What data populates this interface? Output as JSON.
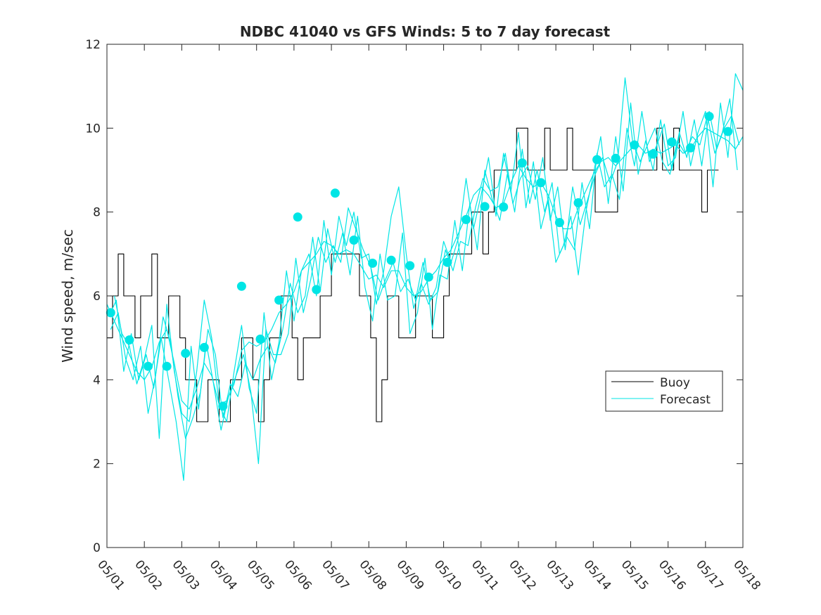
{
  "chart_data": {
    "type": "line",
    "title": "NDBC 41040 vs GFS Winds: 5 to 7 day forecast",
    "xlabel": "",
    "ylabel": "Wind speed, m/sec",
    "xlim": [
      1,
      18
    ],
    "ylim": [
      0,
      12
    ],
    "x_tick_values": [
      1,
      2,
      3,
      4,
      5,
      6,
      7,
      8,
      9,
      10,
      11,
      12,
      13,
      14,
      15,
      16,
      17,
      18
    ],
    "x_tick_labels": [
      "05/01",
      "05/02",
      "05/03",
      "05/04",
      "05/05",
      "05/06",
      "05/07",
      "05/08",
      "05/09",
      "05/10",
      "05/11",
      "05/12",
      "05/13",
      "05/14",
      "05/15",
      "05/16",
      "05/17",
      "05/18"
    ],
    "y_ticks": [
      0,
      2,
      4,
      6,
      8,
      10,
      12
    ],
    "grid": false,
    "legend": {
      "placement": "right-middle",
      "entries": [
        "Buoy",
        "Forecast"
      ]
    },
    "colors": {
      "Buoy": "#000000",
      "Forecast": "#00e5e5"
    },
    "series": [
      {
        "name": "Buoy",
        "x": [
          1.0,
          1.15,
          1.3,
          1.45,
          1.6,
          1.75,
          1.9,
          2.05,
          2.2,
          2.35,
          2.5,
          2.65,
          2.8,
          2.95,
          3.1,
          3.25,
          3.4,
          3.55,
          3.7,
          3.85,
          4.0,
          4.15,
          4.3,
          4.45,
          4.6,
          4.75,
          4.9,
          5.05,
          5.2,
          5.35,
          5.5,
          5.65,
          5.8,
          5.95,
          6.1,
          6.25,
          6.4,
          6.55,
          6.7,
          6.85,
          7.0,
          7.15,
          7.3,
          7.45,
          7.6,
          7.75,
          7.9,
          8.05,
          8.2,
          8.35,
          8.5,
          8.65,
          8.8,
          8.95,
          9.1,
          9.25,
          9.4,
          9.55,
          9.7,
          9.85,
          10.0,
          10.15,
          10.3,
          10.45,
          10.6,
          10.75,
          10.9,
          11.05,
          11.2,
          11.35,
          11.5,
          11.65,
          11.8,
          11.95,
          12.1,
          12.25,
          12.4,
          12.55,
          12.7,
          12.85,
          13.0,
          13.15,
          13.3,
          13.45,
          13.6,
          13.75,
          13.9,
          14.05,
          14.2,
          14.35,
          14.5,
          14.65,
          14.8,
          14.95,
          15.1,
          15.25,
          15.4,
          15.55,
          15.7,
          15.85,
          16.0,
          16.15,
          16.3,
          16.45,
          16.6,
          16.75,
          16.9,
          17.05,
          17.2,
          17.35
        ],
        "values": [
          5,
          6,
          7,
          6,
          6,
          5,
          6,
          6,
          7,
          5,
          5,
          6,
          6,
          5,
          4,
          4,
          3,
          3,
          4,
          4,
          3,
          3,
          4,
          4,
          5,
          5,
          4,
          3,
          4,
          5,
          5,
          6,
          6,
          5,
          4,
          5,
          5,
          5,
          6,
          6,
          7,
          7,
          7,
          7,
          7,
          6,
          6,
          5,
          3,
          4,
          6,
          6,
          5,
          5,
          5,
          6,
          6,
          6,
          5,
          5,
          6,
          7,
          7,
          7,
          7,
          8,
          8,
          7,
          8,
          9,
          9,
          9,
          9,
          10,
          10,
          9,
          9,
          9,
          10,
          9,
          9,
          9,
          10,
          9,
          9,
          9,
          9,
          8,
          8,
          8,
          8,
          9,
          9,
          9,
          9,
          9,
          9,
          9,
          10,
          9,
          9,
          10,
          9,
          9,
          9,
          9,
          8,
          9,
          9,
          9
        ]
      },
      {
        "name": "Forecast",
        "x": [
          1.0,
          1.2,
          1.4,
          1.6,
          1.8,
          2.0,
          2.2,
          2.4,
          2.6,
          2.8,
          3.0,
          3.2,
          3.4,
          3.6,
          3.8,
          4.0,
          4.2,
          4.4,
          4.6,
          4.8,
          5.0,
          5.2,
          5.4,
          5.6,
          5.8,
          6.0,
          6.2,
          6.4,
          6.6,
          6.8,
          7.0,
          7.2,
          7.4,
          7.6,
          7.8,
          8.0,
          8.2,
          8.4,
          8.6,
          8.8,
          9.0,
          9.2,
          9.4,
          9.6,
          9.8,
          10.0,
          10.2,
          10.4,
          10.6,
          10.8,
          11.0,
          11.2,
          11.4,
          11.6,
          11.8,
          12.0,
          12.2,
          12.4,
          12.6,
          12.8,
          13.0,
          13.2,
          13.4,
          13.6,
          13.8,
          14.0,
          14.2,
          14.4,
          14.6,
          14.8,
          15.0,
          15.2,
          15.4,
          15.6,
          15.8,
          16.0,
          16.2,
          16.4,
          16.6,
          16.8,
          17.0,
          17.2,
          17.4,
          17.6,
          17.8,
          18.0
        ],
        "values": [
          5.8,
          5.4,
          5.0,
          4.6,
          4.2,
          4.0,
          4.3,
          4.9,
          5.2,
          4.4,
          3.5,
          3.3,
          3.8,
          4.4,
          4.1,
          3.4,
          3.5,
          3.9,
          4.7,
          4.9,
          4.8,
          4.9,
          5.2,
          5.6,
          5.8,
          6.1,
          6.6,
          6.8,
          7.0,
          7.3,
          7.2,
          7.0,
          7.1,
          7.0,
          6.7,
          6.4,
          6.5,
          6.2,
          6.6,
          6.6,
          6.2,
          6.0,
          6.1,
          6.4,
          6.6,
          6.9,
          7.1,
          7.5,
          7.9,
          8.4,
          8.6,
          8.4,
          8.1,
          8.2,
          8.7,
          9.1,
          8.8,
          8.6,
          8.7,
          8.4,
          7.9,
          7.6,
          7.6,
          8.1,
          8.5,
          8.9,
          9.2,
          9.3,
          9.1,
          9.3,
          9.5,
          9.6,
          9.4,
          9.5,
          9.4,
          9.5,
          9.6,
          9.4,
          9.5,
          9.8,
          10.0,
          9.9,
          9.8,
          9.7,
          9.5,
          9.8
        ]
      },
      {
        "name": "",
        "x": [
          1.1,
          1.3,
          1.5,
          1.7,
          1.9,
          2.1,
          2.3,
          2.5,
          2.7,
          2.9,
          3.1,
          3.3,
          3.5,
          3.7,
          3.9,
          4.1,
          4.3,
          4.5,
          4.7,
          4.9,
          5.1,
          5.3,
          5.5,
          5.7,
          5.9,
          6.1,
          6.3,
          6.5,
          6.7,
          6.9,
          7.1,
          7.3,
          7.5,
          7.7,
          7.9,
          8.1,
          8.3,
          8.5,
          8.7,
          8.9,
          9.1,
          9.3,
          9.5,
          9.7,
          9.9,
          10.1,
          10.3,
          10.5,
          10.7,
          10.9,
          11.1,
          11.3,
          11.5,
          11.7,
          11.9,
          12.1,
          12.3,
          12.5,
          12.7,
          12.9,
          13.1,
          13.3,
          13.5,
          13.7,
          13.9,
          14.1,
          14.3,
          14.5,
          14.7,
          14.9,
          15.1,
          15.3,
          15.5,
          15.7,
          15.9,
          16.1,
          16.3,
          16.5,
          16.7,
          16.9,
          17.1,
          17.3,
          17.5,
          17.7,
          17.9
        ],
        "values": [
          5.2,
          5.6,
          4.5,
          4.0,
          4.8,
          3.2,
          4.1,
          5.5,
          4.9,
          3.6,
          2.6,
          3.1,
          3.7,
          5.2,
          4.6,
          3.1,
          3.9,
          3.6,
          4.4,
          4.0,
          4.5,
          4.8,
          4.4,
          5.2,
          6.3,
          5.6,
          6.0,
          7.4,
          6.1,
          7.6,
          6.8,
          7.5,
          6.5,
          7.9,
          6.2,
          5.4,
          7.0,
          5.9,
          6.0,
          7.5,
          5.1,
          5.6,
          6.9,
          5.2,
          6.5,
          6.4,
          7.8,
          6.6,
          8.2,
          7.1,
          9.0,
          8.3,
          7.8,
          8.9,
          8.0,
          9.5,
          8.2,
          9.0,
          8.0,
          8.7,
          7.0,
          7.4,
          7.1,
          8.7,
          7.6,
          9.4,
          8.6,
          8.9,
          8.3,
          10.0,
          9.1,
          10.4,
          9.2,
          9.6,
          10.1,
          9.0,
          9.9,
          9.3,
          10.2,
          9.1,
          10.4,
          9.5,
          10.0,
          10.3,
          9.6
        ]
      },
      {
        "name": "",
        "x": [
          1.2,
          1.4,
          1.6,
          1.8,
          2.0,
          2.2,
          2.4,
          2.6,
          2.8,
          3.0,
          3.2,
          3.4,
          3.6,
          3.8,
          4.0,
          4.2,
          4.4,
          4.6,
          4.8,
          5.0,
          5.2,
          5.4,
          5.6,
          5.8,
          6.0,
          6.2,
          6.4,
          6.6,
          6.8,
          7.0,
          7.2,
          7.4,
          7.6,
          7.8,
          8.0,
          8.2,
          8.4,
          8.6,
          8.8,
          9.0,
          9.2,
          9.4,
          9.6,
          9.8,
          10.0,
          10.2,
          10.4,
          10.6,
          10.8,
          11.0,
          11.2,
          11.4,
          11.6,
          11.8,
          12.0,
          12.2,
          12.4,
          12.6,
          12.8,
          13.0,
          13.2,
          13.4,
          13.6,
          13.8,
          14.0,
          14.2,
          14.4,
          14.6,
          14.8,
          15.0,
          15.2,
          15.4,
          15.6,
          15.8,
          16.0,
          16.2,
          16.4,
          16.6,
          16.8,
          17.0,
          17.2,
          17.4,
          17.6,
          17.8,
          18.0
        ],
        "values": [
          6.0,
          5.1,
          4.8,
          3.9,
          4.5,
          5.3,
          2.6,
          5.8,
          4.2,
          3.2,
          3.0,
          4.2,
          5.9,
          5.0,
          3.4,
          3.0,
          4.2,
          5.3,
          3.8,
          3.2,
          5.6,
          4.0,
          4.9,
          6.6,
          5.4,
          6.6,
          7.0,
          6.0,
          7.8,
          6.5,
          7.9,
          7.2,
          8.0,
          6.9,
          7.0,
          5.8,
          6.6,
          7.9,
          8.6,
          7.0,
          5.7,
          6.3,
          5.8,
          6.2,
          7.3,
          6.8,
          7.4,
          8.8,
          7.6,
          8.4,
          9.3,
          7.9,
          9.4,
          8.5,
          9.9,
          8.1,
          9.2,
          7.6,
          8.3,
          6.8,
          7.2,
          7.9,
          6.5,
          8.0,
          8.9,
          9.8,
          8.2,
          9.8,
          8.5,
          10.6,
          8.9,
          9.7,
          9.0,
          10.2,
          9.1,
          9.3,
          10.4,
          9.1,
          9.9,
          10.4,
          8.6,
          10.6,
          9.3,
          11.3,
          10.9
        ]
      },
      {
        "name": "",
        "x": [
          1.05,
          1.25,
          1.45,
          1.65,
          1.85,
          2.05,
          2.25,
          2.45,
          2.65,
          2.85,
          3.05,
          3.25,
          3.45,
          3.65,
          3.85,
          4.05,
          4.25,
          4.45,
          4.65,
          4.85,
          5.05,
          5.25,
          5.45,
          5.65,
          5.85,
          6.05,
          6.25,
          6.45,
          6.65,
          6.85,
          7.05,
          7.25,
          7.45,
          7.65,
          7.85,
          8.05,
          8.25,
          8.45,
          8.65,
          8.85,
          9.05,
          9.25,
          9.45,
          9.65,
          9.85,
          10.05,
          10.25,
          10.45,
          10.65,
          10.85,
          11.05,
          11.25,
          11.45,
          11.65,
          11.85,
          12.05,
          12.25,
          12.45,
          12.65,
          12.85,
          13.05,
          13.25,
          13.45,
          13.65,
          13.85,
          14.05,
          14.25,
          14.45,
          14.65,
          14.85,
          15.05,
          15.25,
          15.45,
          15.65,
          15.85,
          16.05,
          16.25,
          16.45,
          16.65,
          16.85,
          17.05,
          17.25,
          17.45,
          17.65,
          17.85
        ],
        "values": [
          5.5,
          5.9,
          4.2,
          5.1,
          4.0,
          4.6,
          3.8,
          5.0,
          4.0,
          3.0,
          1.6,
          4.8,
          3.3,
          4.9,
          3.9,
          2.8,
          3.6,
          4.1,
          4.6,
          3.7,
          2.0,
          5.2,
          4.6,
          4.6,
          5.1,
          6.9,
          5.6,
          6.4,
          7.4,
          6.8,
          7.2,
          6.8,
          8.1,
          7.6,
          7.1,
          6.7,
          5.9,
          6.4,
          6.8,
          6.1,
          6.4,
          5.9,
          6.8,
          5.9,
          6.1,
          7.1,
          6.6,
          7.3,
          7.2,
          8.1,
          8.8,
          8.5,
          8.6,
          9.4,
          8.2,
          8.8,
          9.1,
          8.3,
          9.3,
          7.8,
          8.6,
          7.1,
          8.6,
          7.7,
          8.3,
          8.9,
          9.3,
          8.7,
          9.2,
          11.2,
          9.7,
          9.2,
          9.6,
          10.0,
          9.2,
          8.9,
          9.7,
          9.4,
          9.8,
          9.6,
          10.3,
          9.4,
          9.9,
          10.7,
          9.0
        ]
      }
    ],
    "markers": {
      "name": "Forecast",
      "shape": "circle",
      "x": [
        1.1,
        1.6,
        2.1,
        2.6,
        3.1,
        3.6,
        4.1,
        4.6,
        5.1,
        5.6,
        6.1,
        6.6,
        7.1,
        7.6,
        8.1,
        8.6,
        9.1,
        9.6,
        10.1,
        10.6,
        11.1,
        11.6,
        12.1,
        12.6,
        13.1,
        13.6,
        14.1,
        14.6,
        15.1,
        15.6,
        16.1,
        16.6,
        17.1,
        17.6
      ],
      "values": [
        5.6,
        4.95,
        4.32,
        4.32,
        4.63,
        4.77,
        3.37,
        6.23,
        4.97,
        5.9,
        7.88,
        6.15,
        8.45,
        7.33,
        6.78,
        6.85,
        6.72,
        6.45,
        6.8,
        7.82,
        8.13,
        8.12,
        9.17,
        8.7,
        7.75,
        8.22,
        9.25,
        9.28,
        9.6,
        9.38,
        9.67,
        9.53,
        10.28,
        9.92
      ]
    }
  }
}
